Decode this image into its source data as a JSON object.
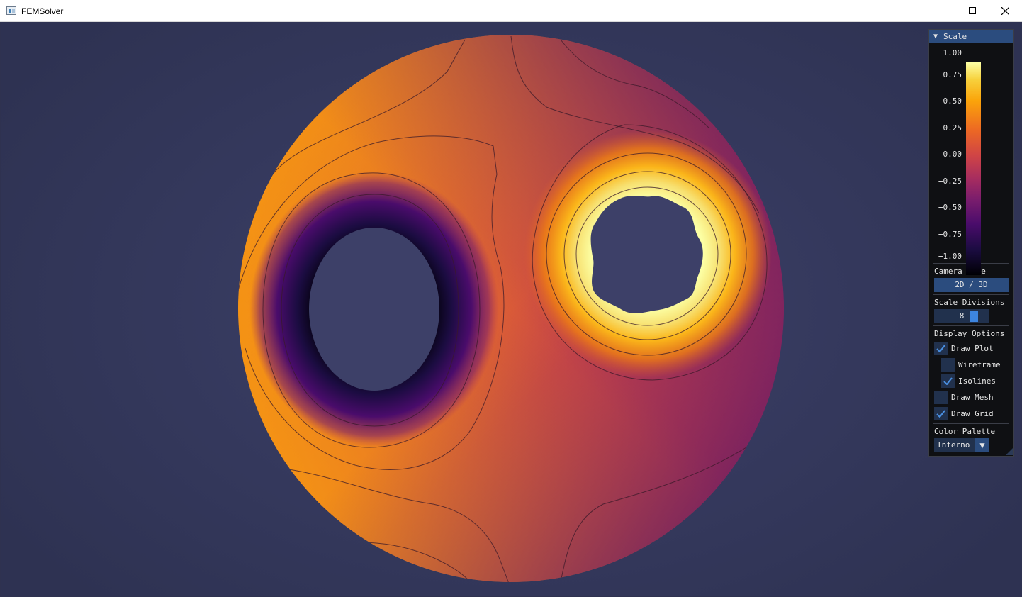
{
  "window": {
    "title": "FEMSolver"
  },
  "panel": {
    "header": "Scale",
    "scale_ticks": [
      "1.00",
      "0.75",
      "0.50",
      "0.25",
      "0.00",
      "−0.25",
      "−0.50",
      "−0.75",
      "−1.00"
    ],
    "camera_mode": {
      "label": "Camera Mode",
      "button": "2D / 3D"
    },
    "scale_divisions": {
      "label": "Scale Divisions",
      "value": "8"
    },
    "display_options": {
      "label": "Display Options",
      "draw_plot": {
        "label": "Draw Plot",
        "checked": true
      },
      "wireframe": {
        "label": "Wireframe",
        "checked": false
      },
      "isolines": {
        "label": "Isolines",
        "checked": true
      },
      "draw_mesh": {
        "label": "Draw Mesh",
        "checked": false
      },
      "draw_grid": {
        "label": "Draw Grid",
        "checked": true
      }
    },
    "color_palette": {
      "label": "Color Palette",
      "selected": "Inferno"
    }
  },
  "colors": {
    "accent": "#2b4c7e",
    "check": "#4a90e2",
    "background": "#363a5f"
  },
  "icons": [
    "app-icon",
    "minimize-icon",
    "maximize-icon",
    "close-icon",
    "collapse-triangle-icon",
    "checkmark-icon",
    "dropdown-arrow-icon"
  ]
}
